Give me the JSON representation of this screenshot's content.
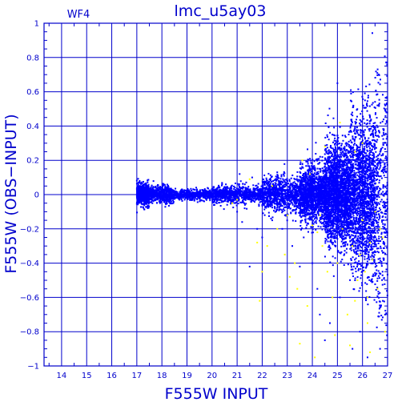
{
  "chart_data": {
    "type": "scatter",
    "title": "lmc_u5ay03",
    "panel_label": "WF4",
    "xlabel": "F555W INPUT",
    "ylabel": "F555W (OBS−INPUT)",
    "xlim": [
      13.3,
      27
    ],
    "ylim": [
      -1,
      1
    ],
    "x_ticks": [
      14,
      15,
      16,
      17,
      18,
      19,
      20,
      21,
      22,
      23,
      24,
      25,
      26,
      27
    ],
    "y_ticks": [
      1,
      0.8,
      0.6,
      0.4,
      0.2,
      0,
      -0.2,
      -0.4,
      -0.6,
      -0.8,
      -1
    ],
    "y_tick_labels": [
      "1",
      "0.8",
      "0.6",
      "0.4",
      "0.2",
      "0",
      "−0.2",
      "−0.4",
      "−0.6",
      "−0.8",
      "−1"
    ],
    "grid": true,
    "colors": {
      "axis": "#0000cc",
      "main_series": "#0000ff",
      "secondary_series": "#ffff00",
      "text": "#0000cc"
    },
    "series": [
      {
        "color": "#0000ff",
        "bands": [
          {
            "x": [
              17.0,
              17.5
            ],
            "spread": 0.03,
            "count": 700
          },
          {
            "x": [
              17.5,
              18.4
            ],
            "spread": 0.025,
            "count": 500
          },
          {
            "x": [
              18.4,
              20.0
            ],
            "spread": 0.015,
            "count": 500
          },
          {
            "x": [
              20.0,
              22.0
            ],
            "spread": 0.025,
            "count": 800
          },
          {
            "x": [
              22.0,
              23.5
            ],
            "spread": 0.05,
            "count": 900
          },
          {
            "x": [
              23.5,
              24.5
            ],
            "spread": 0.08,
            "count": 1400
          },
          {
            "x": [
              24.5,
              25.5
            ],
            "spread": 0.14,
            "count": 2200
          },
          {
            "x": [
              25.5,
              26.5
            ],
            "spread": 0.22,
            "count": 1800
          },
          {
            "x": [
              26.5,
              27.0
            ],
            "spread": 0.35,
            "count": 400
          }
        ],
        "points": [
          [
            21.3,
            -0.08
          ],
          [
            21.0,
            -0.1
          ],
          [
            22.1,
            -0.12
          ],
          [
            22.4,
            -0.15
          ],
          [
            22.0,
            -0.25
          ],
          [
            21.5,
            -0.42
          ],
          [
            23.2,
            -0.3
          ],
          [
            23.5,
            -0.42
          ],
          [
            22.7,
            -0.07
          ],
          [
            21.1,
            0.12
          ],
          [
            22.6,
            0.13
          ],
          [
            21.6,
            0.1
          ],
          [
            20.4,
            0.06
          ],
          [
            23.6,
            0.18
          ],
          [
            23.9,
            0.15
          ],
          [
            24.1,
            0.05
          ],
          [
            20.1,
            -0.06
          ],
          [
            22.8,
            -0.2
          ],
          [
            24.3,
            -0.7
          ],
          [
            24.7,
            -0.75
          ],
          [
            24.0,
            -0.4
          ],
          [
            24.5,
            -0.85
          ],
          [
            25.0,
            0.65
          ],
          [
            24.8,
            0.35
          ],
          [
            25.1,
            -0.6
          ],
          [
            25.6,
            -0.9
          ],
          [
            26.2,
            -0.95
          ],
          [
            26.7,
            -0.9
          ],
          [
            26.9,
            -0.7
          ],
          [
            26.8,
            -0.45
          ],
          [
            25.3,
            -0.3
          ],
          [
            24.2,
            -0.55
          ],
          [
            25.9,
            -0.8
          ],
          [
            26.1,
            0.55
          ],
          [
            26.3,
            0.45
          ],
          [
            23.0,
            0.08
          ],
          [
            21.8,
            -0.2
          ],
          [
            21.2,
            -0.16
          ],
          [
            20.7,
            -0.03
          ],
          [
            19.4,
            0.03
          ]
        ]
      },
      {
        "color": "#ffff00",
        "points": [
          [
            21.8,
            -0.28
          ],
          [
            22.2,
            -0.3
          ],
          [
            22.6,
            -0.2
          ],
          [
            22.9,
            -0.35
          ],
          [
            23.3,
            -0.4
          ],
          [
            23.4,
            -0.55
          ],
          [
            23.6,
            0.2
          ],
          [
            23.9,
            0.12
          ],
          [
            24.0,
            -0.18
          ],
          [
            24.2,
            -0.22
          ],
          [
            24.4,
            -0.3
          ],
          [
            24.6,
            -0.45
          ],
          [
            24.8,
            -0.6
          ],
          [
            25.0,
            -0.4
          ],
          [
            25.2,
            -0.2
          ],
          [
            25.4,
            -0.7
          ],
          [
            25.6,
            -0.3
          ],
          [
            25.7,
            0.25
          ],
          [
            25.8,
            -0.5
          ],
          [
            25.9,
            -0.35
          ],
          [
            26.0,
            -0.15
          ],
          [
            26.1,
            -0.45
          ],
          [
            26.2,
            -0.6
          ],
          [
            26.3,
            -0.28
          ],
          [
            26.4,
            -0.38
          ],
          [
            26.5,
            -0.1
          ],
          [
            26.6,
            -0.55
          ],
          [
            26.7,
            -0.2
          ],
          [
            26.9,
            -0.8
          ],
          [
            26.3,
            -0.92
          ],
          [
            25.5,
            -0.88
          ],
          [
            24.9,
            -0.82
          ],
          [
            23.5,
            -0.87
          ],
          [
            24.1,
            -0.95
          ],
          [
            22.4,
            0.05
          ],
          [
            21.0,
            -0.03
          ],
          [
            21.5,
            0.09
          ],
          [
            20.8,
            -0.05
          ],
          [
            22.0,
            -0.45
          ],
          [
            23.1,
            -0.48
          ],
          [
            21.9,
            -0.62
          ],
          [
            23.8,
            -0.65
          ],
          [
            24.5,
            0.28
          ],
          [
            25.1,
            0.42
          ],
          [
            26.0,
            0.3
          ],
          [
            26.8,
            -0.25
          ],
          [
            26.2,
            -0.75
          ],
          [
            25.7,
            -0.62
          ],
          [
            24.3,
            -0.12
          ],
          [
            23.0,
            -0.12
          ]
        ]
      }
    ]
  }
}
